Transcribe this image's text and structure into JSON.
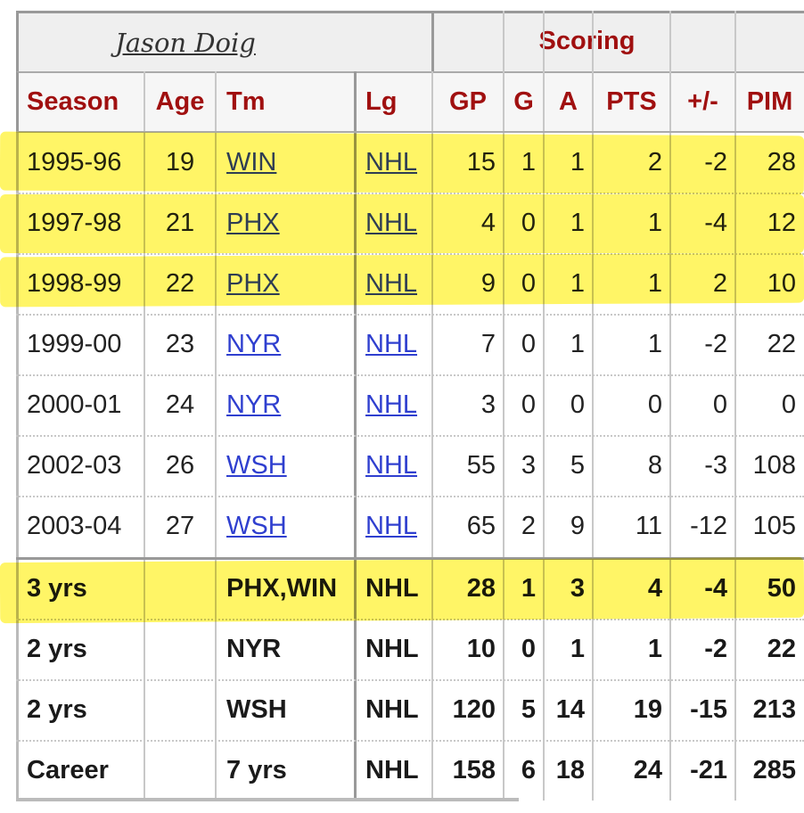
{
  "title": "Jason Doig",
  "group": "Scoring",
  "columns": [
    "Season",
    "Age",
    "Tm",
    "Lg",
    "GP",
    "G",
    "A",
    "PTS",
    "+/-",
    "PIM"
  ],
  "rows": [
    [
      "1995-96",
      "19",
      "WIN",
      "NHL",
      "15",
      "1",
      "1",
      "2",
      "-2",
      "28"
    ],
    [
      "1997-98",
      "21",
      "PHX",
      "NHL",
      "4",
      "0",
      "1",
      "1",
      "-4",
      "12"
    ],
    [
      "1998-99",
      "22",
      "PHX",
      "NHL",
      "9",
      "0",
      "1",
      "1",
      "2",
      "10"
    ],
    [
      "1999-00",
      "23",
      "NYR",
      "NHL",
      "7",
      "0",
      "1",
      "1",
      "-2",
      "22"
    ],
    [
      "2000-01",
      "24",
      "NYR",
      "NHL",
      "3",
      "0",
      "0",
      "0",
      "0",
      "0"
    ],
    [
      "2002-03",
      "26",
      "WSH",
      "NHL",
      "55",
      "3",
      "5",
      "8",
      "-3",
      "108"
    ],
    [
      "2003-04",
      "27",
      "WSH",
      "NHL",
      "65",
      "2",
      "9",
      "11",
      "-12",
      "105"
    ]
  ],
  "summary": [
    [
      "3 yrs",
      "PHX,WIN",
      "NHL",
      "28",
      "1",
      "3",
      "4",
      "-4",
      "50"
    ],
    [
      "2 yrs",
      "NYR",
      "NHL",
      "10",
      "0",
      "1",
      "1",
      "-2",
      "22"
    ],
    [
      "2 yrs",
      "WSH",
      "NHL",
      "120",
      "5",
      "14",
      "19",
      "-15",
      "213"
    ],
    [
      "Career",
      "7 yrs",
      "NHL",
      "158",
      "6",
      "18",
      "24",
      "-21",
      "285"
    ]
  ]
}
